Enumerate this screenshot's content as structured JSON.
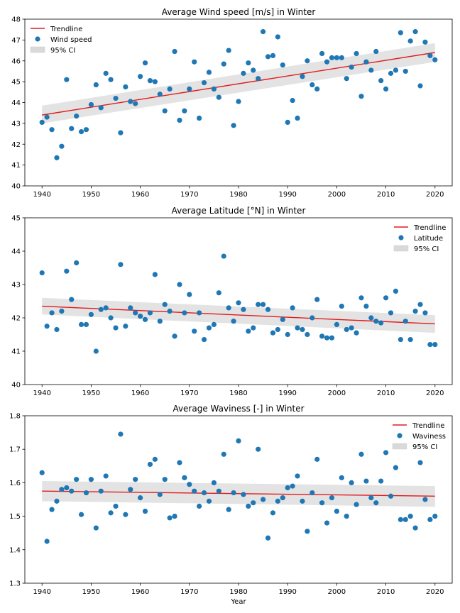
{
  "colors": {
    "trend": "#e31a1c",
    "points": "#1f77b4",
    "ci": "#d9d9d9"
  },
  "chart_data": [
    {
      "type": "scatter",
      "title": "Average Wind speed [m/s] in Winter",
      "xlabel": "",
      "ylabel": "",
      "xlim": [
        1936.5,
        2023.5
      ],
      "ylim": [
        40,
        48
      ],
      "xticks": [
        "1940",
        "1950",
        "1960",
        "1970",
        "1980",
        "1990",
        "2000",
        "2010",
        "2020"
      ],
      "yticks": [
        "40",
        "41",
        "42",
        "43",
        "44",
        "45",
        "46",
        "47",
        "48"
      ],
      "legend_position": "upper-left",
      "legend": [
        "Trendline",
        "Wind speed",
        "95% CI"
      ],
      "trend": {
        "start": [
          1940,
          43.4
        ],
        "end": [
          2020,
          46.4
        ]
      },
      "ci": {
        "lower": [
          43.0,
          45.95
        ],
        "upper": [
          43.85,
          46.85
        ]
      },
      "x": [
        1940,
        1941,
        1942,
        1943,
        1944,
        1945,
        1946,
        1947,
        1948,
        1949,
        1950,
        1951,
        1952,
        1953,
        1954,
        1955,
        1956,
        1957,
        1958,
        1959,
        1960,
        1961,
        1962,
        1963,
        1964,
        1965,
        1966,
        1967,
        1968,
        1969,
        1970,
        1971,
        1972,
        1973,
        1974,
        1975,
        1976,
        1977,
        1978,
        1979,
        1980,
        1981,
        1982,
        1983,
        1984,
        1985,
        1986,
        1987,
        1988,
        1989,
        1990,
        1991,
        1992,
        1993,
        1994,
        1995,
        1996,
        1997,
        1998,
        1999,
        2000,
        2001,
        2002,
        2003,
        2004,
        2005,
        2006,
        2007,
        2008,
        2009,
        2010,
        2011,
        2012,
        2013,
        2014,
        2015,
        2016,
        2017,
        2018,
        2019,
        2020
      ],
      "y": [
        43.05,
        43.3,
        42.7,
        41.35,
        41.9,
        45.1,
        42.75,
        43.35,
        42.6,
        42.7,
        43.9,
        44.85,
        43.75,
        45.4,
        45.1,
        44.2,
        42.55,
        44.75,
        44.05,
        43.95,
        45.25,
        45.9,
        45.05,
        45.0,
        44.4,
        43.6,
        44.65,
        46.45,
        43.15,
        43.6,
        44.65,
        45.95,
        43.25,
        44.95,
        45.45,
        44.65,
        44.25,
        45.85,
        46.5,
        42.9,
        44.05,
        45.4,
        45.9,
        45.55,
        45.15,
        47.4,
        46.2,
        46.25,
        47.15,
        45.8,
        43.05,
        44.1,
        43.25,
        45.25,
        46.0,
        44.85,
        44.65,
        46.35,
        45.95,
        46.15,
        46.15,
        46.15,
        45.15,
        45.7,
        46.35,
        44.3,
        45.95,
        45.55,
        46.45,
        45.05,
        44.65,
        45.4,
        45.55,
        47.35,
        45.5,
        46.95,
        47.4,
        44.8,
        46.9,
        46.25,
        46.05
      ]
    },
    {
      "type": "scatter",
      "title": "Average Latitude [°N] in Winter",
      "xlabel": "",
      "ylabel": "",
      "xlim": [
        1936.5,
        2023.5
      ],
      "ylim": [
        40,
        45
      ],
      "xticks": [
        "1940",
        "1950",
        "1960",
        "1970",
        "1980",
        "1990",
        "2000",
        "2010",
        "2020"
      ],
      "yticks": [
        "40",
        "41",
        "42",
        "43",
        "44",
        "45"
      ],
      "legend_position": "upper-right",
      "legend": [
        "Trendline",
        "Latitude",
        "95% CI"
      ],
      "trend": {
        "start": [
          1940,
          42.35
        ],
        "end": [
          2020,
          41.82
        ]
      },
      "ci": {
        "lower": [
          42.1,
          41.55
        ],
        "upper": [
          42.6,
          42.08
        ]
      },
      "x": [
        1940,
        1941,
        1942,
        1943,
        1944,
        1945,
        1946,
        1947,
        1948,
        1949,
        1950,
        1951,
        1952,
        1953,
        1954,
        1955,
        1956,
        1957,
        1958,
        1959,
        1960,
        1961,
        1962,
        1963,
        1964,
        1965,
        1966,
        1967,
        1968,
        1969,
        1970,
        1971,
        1972,
        1973,
        1974,
        1975,
        1976,
        1977,
        1978,
        1979,
        1980,
        1981,
        1982,
        1983,
        1984,
        1985,
        1986,
        1987,
        1988,
        1989,
        1990,
        1991,
        1992,
        1993,
        1994,
        1995,
        1996,
        1997,
        1998,
        1999,
        2000,
        2001,
        2002,
        2003,
        2004,
        2005,
        2006,
        2007,
        2008,
        2009,
        2010,
        2011,
        2012,
        2013,
        2014,
        2015,
        2016,
        2017,
        2018,
        2019,
        2020
      ],
      "y": [
        43.35,
        41.75,
        42.15,
        41.65,
        42.2,
        43.4,
        42.55,
        43.65,
        41.8,
        41.8,
        42.1,
        41.0,
        42.25,
        42.3,
        42.0,
        41.7,
        43.6,
        41.75,
        42.3,
        42.15,
        42.05,
        41.95,
        42.15,
        43.3,
        41.9,
        42.4,
        42.2,
        41.45,
        43.0,
        42.15,
        42.7,
        41.6,
        42.15,
        41.35,
        41.7,
        41.8,
        42.75,
        43.85,
        42.3,
        41.9,
        42.45,
        42.25,
        41.6,
        41.7,
        42.4,
        42.4,
        42.25,
        41.55,
        41.65,
        41.95,
        41.5,
        42.3,
        41.7,
        41.65,
        41.5,
        42.0,
        42.55,
        41.45,
        41.4,
        41.4,
        41.8,
        42.35,
        41.65,
        41.7,
        41.55,
        42.6,
        42.35,
        42.0,
        41.9,
        41.85,
        42.6,
        42.15,
        42.8,
        41.35,
        41.9,
        41.35,
        42.2,
        42.4,
        42.15,
        41.2,
        41.2
      ]
    },
    {
      "type": "scatter",
      "title": "Average Waviness [-] in Winter",
      "xlabel": "Year",
      "ylabel": "",
      "xlim": [
        1936.5,
        2023.5
      ],
      "ylim": [
        1.3,
        1.8
      ],
      "xticks": [
        "1940",
        "1950",
        "1960",
        "1970",
        "1980",
        "1990",
        "2000",
        "2010",
        "2020"
      ],
      "yticks": [
        "1.3",
        "1.4",
        "1.5",
        "1.6",
        "1.7",
        "1.8"
      ],
      "legend_position": "upper-right",
      "legend": [
        "Trendline",
        "Waviness",
        "95% CI"
      ],
      "trend": {
        "start": [
          1940,
          1.575
        ],
        "end": [
          2020,
          1.56
        ]
      },
      "ci": {
        "lower": [
          1.545,
          1.528
        ],
        "upper": [
          1.605,
          1.59
        ]
      },
      "x": [
        1940,
        1941,
        1942,
        1943,
        1944,
        1945,
        1946,
        1947,
        1948,
        1949,
        1950,
        1951,
        1952,
        1953,
        1954,
        1955,
        1956,
        1957,
        1958,
        1959,
        1960,
        1961,
        1962,
        1963,
        1964,
        1965,
        1966,
        1967,
        1968,
        1969,
        1970,
        1971,
        1972,
        1973,
        1974,
        1975,
        1976,
        1977,
        1978,
        1979,
        1980,
        1981,
        1982,
        1983,
        1984,
        1985,
        1986,
        1987,
        1988,
        1989,
        1990,
        1991,
        1992,
        1993,
        1994,
        1995,
        1996,
        1997,
        1998,
        1999,
        2000,
        2001,
        2002,
        2003,
        2004,
        2005,
        2006,
        2007,
        2008,
        2009,
        2010,
        2011,
        2012,
        2013,
        2014,
        2015,
        2016,
        2017,
        2018,
        2019,
        2020
      ],
      "y": [
        1.63,
        1.425,
        1.52,
        1.545,
        1.58,
        1.585,
        1.575,
        1.61,
        1.505,
        1.57,
        1.61,
        1.465,
        1.575,
        1.62,
        1.51,
        1.53,
        1.745,
        1.505,
        1.58,
        1.61,
        1.555,
        1.515,
        1.655,
        1.67,
        1.565,
        1.61,
        1.495,
        1.5,
        1.66,
        1.615,
        1.595,
        1.575,
        1.53,
        1.57,
        1.545,
        1.6,
        1.575,
        1.685,
        1.52,
        1.57,
        1.725,
        1.565,
        1.53,
        1.54,
        1.7,
        1.55,
        1.435,
        1.51,
        1.545,
        1.555,
        1.585,
        1.59,
        1.62,
        1.545,
        1.455,
        1.57,
        1.67,
        1.54,
        1.48,
        1.555,
        1.515,
        1.615,
        1.5,
        1.6,
        1.535,
        1.685,
        1.605,
        1.555,
        1.54,
        1.605,
        1.69,
        1.56,
        1.645,
        1.49,
        1.49,
        1.5,
        1.465,
        1.66,
        1.55,
        1.49,
        1.5
      ]
    }
  ]
}
